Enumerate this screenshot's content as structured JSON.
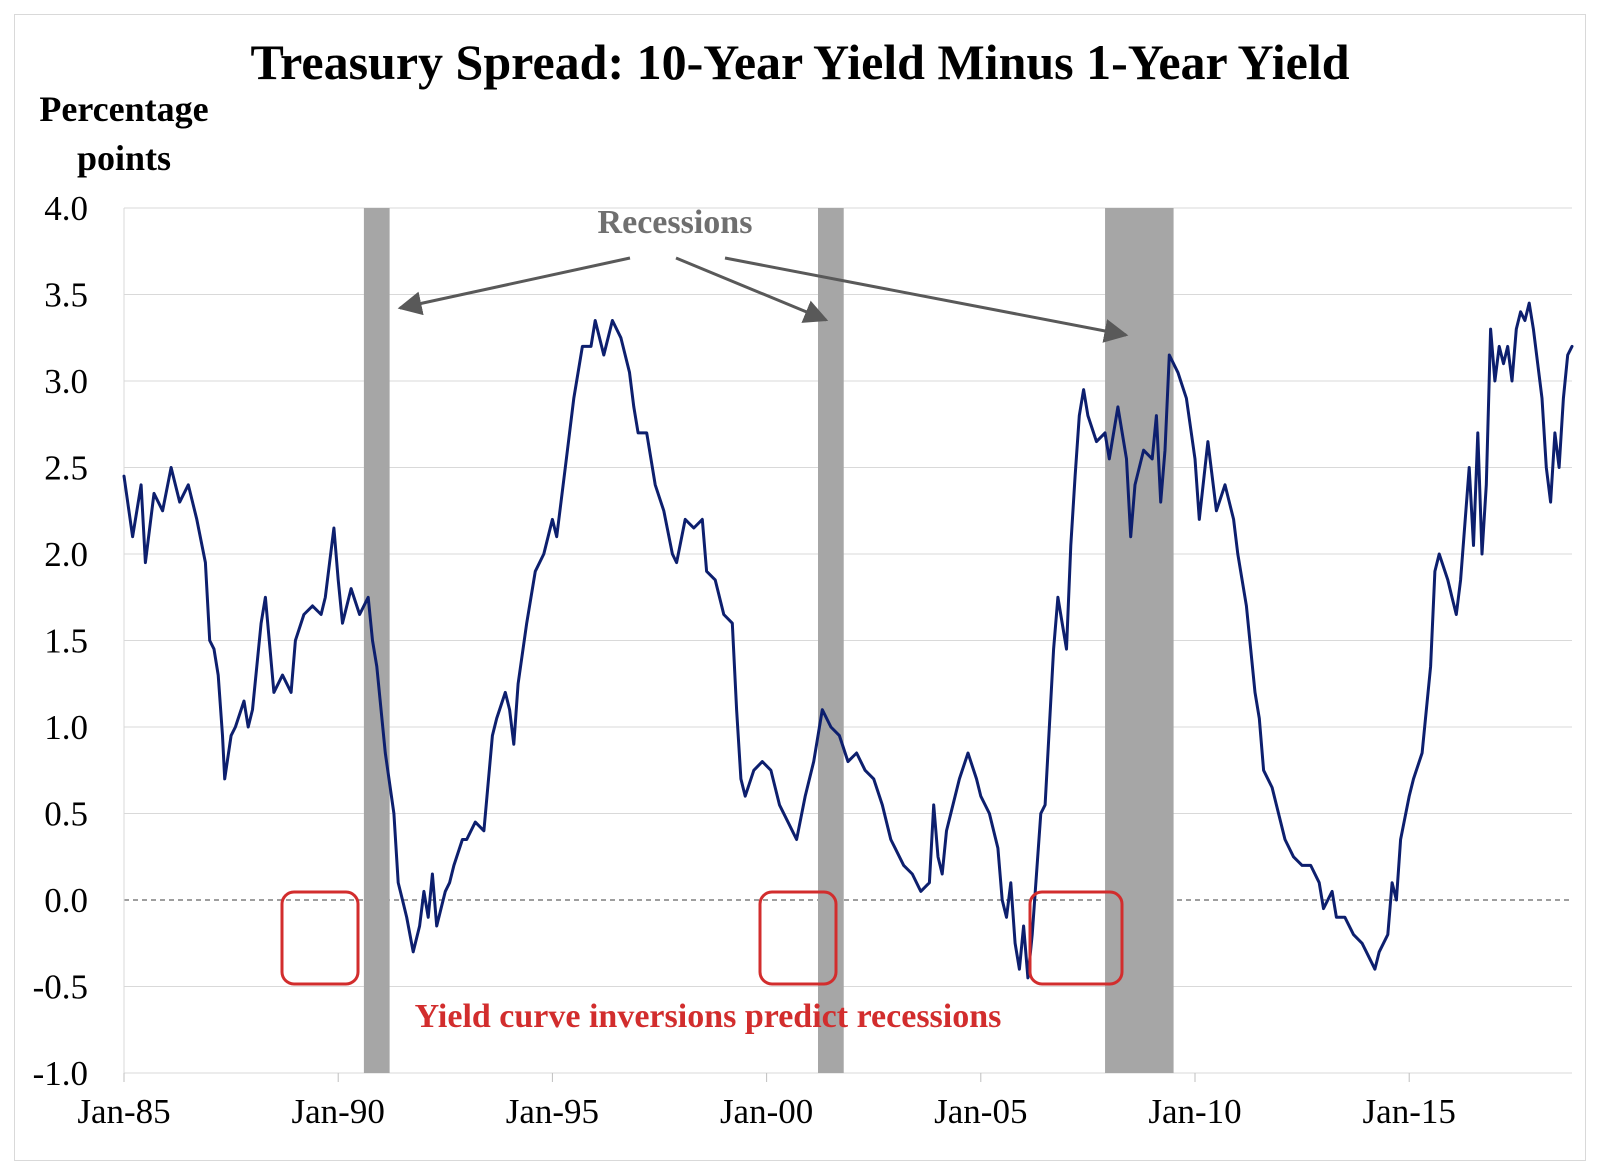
{
  "chart_data": {
    "type": "line",
    "title": "Treasury Spread: 10-Year Yield Minus 1-Year Yield",
    "ylabel_lines": [
      "Percentage",
      "points"
    ],
    "xlabel": "",
    "ylim": [
      -1.0,
      4.0
    ],
    "xlim": [
      1985.0,
      2018.8
    ],
    "y_ticks": [
      {
        "value": 4.0,
        "label": "4.0"
      },
      {
        "value": 3.5,
        "label": "3.5"
      },
      {
        "value": 3.0,
        "label": "3.0"
      },
      {
        "value": 2.5,
        "label": "2.5"
      },
      {
        "value": 2.0,
        "label": "2.0"
      },
      {
        "value": 1.5,
        "label": "1.5"
      },
      {
        "value": 1.0,
        "label": "1.0"
      },
      {
        "value": 0.5,
        "label": "0.5"
      },
      {
        "value": 0.0,
        "label": "0.0"
      },
      {
        "value": -0.5,
        "label": "-0.5"
      },
      {
        "value": -1.0,
        "label": "-1.0"
      }
    ],
    "x_ticks": [
      {
        "value": 1985,
        "label": "Jan-85"
      },
      {
        "value": 1990,
        "label": "Jan-90"
      },
      {
        "value": 1995,
        "label": "Jan-95"
      },
      {
        "value": 2000,
        "label": "Jan-00"
      },
      {
        "value": 2005,
        "label": "Jan-05"
      },
      {
        "value": 2010,
        "label": "Jan-10"
      },
      {
        "value": 2015,
        "label": "Jan-15"
      }
    ],
    "grid": "horizontal",
    "zero_line": "dashed",
    "series": [
      {
        "color": "#0d1f6e",
        "points": [
          [
            1985.0,
            2.45
          ],
          [
            1985.2,
            2.1
          ],
          [
            1985.4,
            2.4
          ],
          [
            1985.5,
            1.95
          ],
          [
            1985.7,
            2.35
          ],
          [
            1985.9,
            2.25
          ],
          [
            1986.1,
            2.5
          ],
          [
            1986.3,
            2.3
          ],
          [
            1986.5,
            2.4
          ],
          [
            1986.7,
            2.2
          ],
          [
            1986.9,
            1.95
          ],
          [
            1987.0,
            1.5
          ],
          [
            1987.1,
            1.45
          ],
          [
            1987.2,
            1.3
          ],
          [
            1987.3,
            0.95
          ],
          [
            1987.35,
            0.7
          ],
          [
            1987.5,
            0.95
          ],
          [
            1987.6,
            1.0
          ],
          [
            1987.8,
            1.15
          ],
          [
            1987.9,
            1.0
          ],
          [
            1988.0,
            1.1
          ],
          [
            1988.2,
            1.6
          ],
          [
            1988.3,
            1.75
          ],
          [
            1988.5,
            1.2
          ],
          [
            1988.7,
            1.3
          ],
          [
            1988.9,
            1.2
          ],
          [
            1989.0,
            1.5
          ],
          [
            1989.2,
            1.65
          ],
          [
            1989.4,
            1.7
          ],
          [
            1989.6,
            1.65
          ],
          [
            1989.7,
            1.75
          ],
          [
            1989.8,
            1.95
          ],
          [
            1989.9,
            2.15
          ],
          [
            1990.0,
            1.85
          ],
          [
            1990.1,
            1.6
          ],
          [
            1990.3,
            1.8
          ],
          [
            1990.5,
            1.65
          ],
          [
            1990.7,
            1.75
          ],
          [
            1990.8,
            1.5
          ],
          [
            1990.9,
            1.35
          ],
          [
            1991.1,
            0.85
          ],
          [
            1991.3,
            0.5
          ],
          [
            1991.4,
            0.1
          ],
          [
            1991.5,
            0.0
          ],
          [
            1991.6,
            -0.1
          ],
          [
            1991.75,
            -0.3
          ],
          [
            1991.9,
            -0.15
          ],
          [
            1992.0,
            0.05
          ],
          [
            1992.1,
            -0.1
          ],
          [
            1992.2,
            0.15
          ],
          [
            1992.3,
            -0.15
          ],
          [
            1992.5,
            0.05
          ],
          [
            1992.6,
            0.1
          ],
          [
            1992.7,
            0.2
          ],
          [
            1992.9,
            0.35
          ],
          [
            1993.0,
            0.35
          ],
          [
            1993.2,
            0.45
          ],
          [
            1993.4,
            0.4
          ],
          [
            1993.6,
            0.95
          ],
          [
            1993.7,
            1.05
          ],
          [
            1993.9,
            1.2
          ],
          [
            1994.0,
            1.1
          ],
          [
            1994.1,
            0.9
          ],
          [
            1994.2,
            1.25
          ],
          [
            1994.4,
            1.6
          ],
          [
            1994.6,
            1.9
          ],
          [
            1994.8,
            2.0
          ],
          [
            1995.0,
            2.2
          ],
          [
            1995.1,
            2.1
          ],
          [
            1995.3,
            2.5
          ],
          [
            1995.5,
            2.9
          ],
          [
            1995.7,
            3.2
          ],
          [
            1995.9,
            3.2
          ],
          [
            1996.0,
            3.35
          ],
          [
            1996.2,
            3.15
          ],
          [
            1996.4,
            3.35
          ],
          [
            1996.6,
            3.25
          ],
          [
            1996.8,
            3.05
          ],
          [
            1996.9,
            2.85
          ],
          [
            1997.0,
            2.7
          ],
          [
            1997.2,
            2.7
          ],
          [
            1997.4,
            2.4
          ],
          [
            1997.6,
            2.25
          ],
          [
            1997.8,
            2.0
          ],
          [
            1997.9,
            1.95
          ],
          [
            1998.1,
            2.2
          ],
          [
            1998.3,
            2.15
          ],
          [
            1998.5,
            2.2
          ],
          [
            1998.6,
            1.9
          ],
          [
            1998.8,
            1.85
          ],
          [
            1999.0,
            1.65
          ],
          [
            1999.2,
            1.6
          ],
          [
            1999.3,
            1.1
          ],
          [
            1999.4,
            0.7
          ],
          [
            1999.5,
            0.6
          ],
          [
            1999.7,
            0.75
          ],
          [
            1999.9,
            0.8
          ],
          [
            2000.1,
            0.75
          ],
          [
            2000.3,
            0.55
          ],
          [
            2000.5,
            0.45
          ],
          [
            2000.7,
            0.35
          ],
          [
            2000.9,
            0.6
          ],
          [
            2001.1,
            0.8
          ],
          [
            2001.3,
            1.1
          ],
          [
            2001.5,
            1.0
          ],
          [
            2001.7,
            0.95
          ],
          [
            2001.9,
            0.8
          ],
          [
            2002.1,
            0.85
          ],
          [
            2002.3,
            0.75
          ],
          [
            2002.5,
            0.7
          ],
          [
            2002.7,
            0.55
          ],
          [
            2002.9,
            0.35
          ],
          [
            2003.0,
            0.3
          ],
          [
            2003.2,
            0.2
          ],
          [
            2003.4,
            0.15
          ],
          [
            2003.6,
            0.05
          ],
          [
            2003.8,
            0.1
          ],
          [
            2003.9,
            0.55
          ],
          [
            2004.0,
            0.25
          ],
          [
            2004.1,
            0.15
          ],
          [
            2004.2,
            0.4
          ],
          [
            2004.3,
            0.5
          ],
          [
            2004.5,
            0.7
          ],
          [
            2004.7,
            0.85
          ],
          [
            2004.9,
            0.7
          ],
          [
            2005.0,
            0.6
          ],
          [
            2005.2,
            0.5
          ],
          [
            2005.4,
            0.3
          ],
          [
            2005.5,
            0.0
          ],
          [
            2005.6,
            -0.1
          ],
          [
            2005.7,
            0.1
          ],
          [
            2005.8,
            -0.25
          ],
          [
            2005.9,
            -0.4
          ],
          [
            2006.0,
            -0.15
          ],
          [
            2006.1,
            -0.45
          ],
          [
            2006.2,
            -0.2
          ],
          [
            2006.3,
            0.15
          ],
          [
            2006.4,
            0.5
          ],
          [
            2006.5,
            0.55
          ],
          [
            2006.7,
            1.45
          ],
          [
            2006.8,
            1.75
          ],
          [
            2006.9,
            1.6
          ],
          [
            2007.0,
            1.45
          ],
          [
            2007.1,
            2.05
          ],
          [
            2007.2,
            2.45
          ],
          [
            2007.3,
            2.8
          ],
          [
            2007.4,
            2.95
          ],
          [
            2007.5,
            2.8
          ],
          [
            2007.7,
            2.65
          ],
          [
            2007.9,
            2.7
          ],
          [
            2008.0,
            2.55
          ],
          [
            2008.2,
            2.85
          ],
          [
            2008.4,
            2.55
          ],
          [
            2008.5,
            2.1
          ],
          [
            2008.6,
            2.4
          ],
          [
            2008.8,
            2.6
          ],
          [
            2009.0,
            2.55
          ],
          [
            2009.1,
            2.8
          ],
          [
            2009.2,
            2.3
          ],
          [
            2009.3,
            2.6
          ],
          [
            2009.4,
            3.15
          ],
          [
            2009.6,
            3.05
          ],
          [
            2009.8,
            2.9
          ],
          [
            2010.0,
            2.55
          ],
          [
            2010.1,
            2.2
          ],
          [
            2010.3,
            2.65
          ],
          [
            2010.5,
            2.25
          ],
          [
            2010.7,
            2.4
          ],
          [
            2010.9,
            2.2
          ],
          [
            2011.0,
            2.0
          ],
          [
            2011.2,
            1.7
          ],
          [
            2011.3,
            1.45
          ],
          [
            2011.4,
            1.2
          ],
          [
            2011.5,
            1.05
          ],
          [
            2011.6,
            0.75
          ],
          [
            2011.8,
            0.65
          ],
          [
            2011.9,
            0.55
          ],
          [
            2012.1,
            0.35
          ],
          [
            2012.3,
            0.25
          ],
          [
            2012.5,
            0.2
          ],
          [
            2012.7,
            0.2
          ],
          [
            2012.9,
            0.1
          ],
          [
            2013.0,
            -0.05
          ],
          [
            2013.2,
            0.05
          ],
          [
            2013.3,
            -0.1
          ],
          [
            2013.5,
            -0.1
          ],
          [
            2013.7,
            -0.2
          ],
          [
            2013.9,
            -0.25
          ],
          [
            2014.0,
            -0.3
          ],
          [
            2014.2,
            -0.4
          ],
          [
            2014.3,
            -0.3
          ],
          [
            2014.5,
            -0.2
          ],
          [
            2014.6,
            0.1
          ],
          [
            2014.7,
            0.0
          ],
          [
            2014.8,
            0.35
          ],
          [
            2015.0,
            0.6
          ],
          [
            2015.1,
            0.7
          ],
          [
            2015.3,
            0.85
          ],
          [
            2015.5,
            1.35
          ],
          [
            2015.6,
            1.9
          ],
          [
            2015.7,
            2.0
          ],
          [
            2015.9,
            1.85
          ],
          [
            2016.0,
            1.75
          ],
          [
            2016.1,
            1.65
          ],
          [
            2016.2,
            1.85
          ],
          [
            2016.4,
            2.5
          ],
          [
            2016.5,
            2.05
          ],
          [
            2016.6,
            2.7
          ],
          [
            2016.7,
            2.0
          ],
          [
            2016.8,
            2.4
          ],
          [
            2016.9,
            3.3
          ],
          [
            2017.0,
            3.0
          ],
          [
            2017.1,
            3.2
          ],
          [
            2017.2,
            3.1
          ],
          [
            2017.3,
            3.2
          ],
          [
            2017.4,
            3.0
          ],
          [
            2017.5,
            3.3
          ],
          [
            2017.6,
            3.4
          ],
          [
            2017.7,
            3.35
          ],
          [
            2017.8,
            3.45
          ],
          [
            2017.9,
            3.3
          ],
          [
            2018.0,
            3.1
          ],
          [
            2018.1,
            2.9
          ],
          [
            2018.2,
            2.5
          ],
          [
            2018.3,
            2.3
          ],
          [
            2018.4,
            2.7
          ],
          [
            2018.5,
            2.5
          ],
          [
            2018.6,
            2.9
          ],
          [
            2018.7,
            3.15
          ],
          [
            2018.8,
            3.2
          ]
        ]
      }
    ],
    "recessions": [
      [
        1990.6,
        1991.2
      ],
      [
        2001.2,
        2001.8
      ],
      [
        2007.9,
        2009.5
      ]
    ],
    "annotations": {
      "recessions_label": "Recessions",
      "inversion_label": "Yield curve inversions predict recessions"
    }
  },
  "colors": {
    "line": "#0d1f6e",
    "recession": "#a6a6a6",
    "arrow": "#595959",
    "recession_text": "#6f6f6f",
    "inversion": "#d22d2d",
    "grid": "#d9d9d9"
  }
}
